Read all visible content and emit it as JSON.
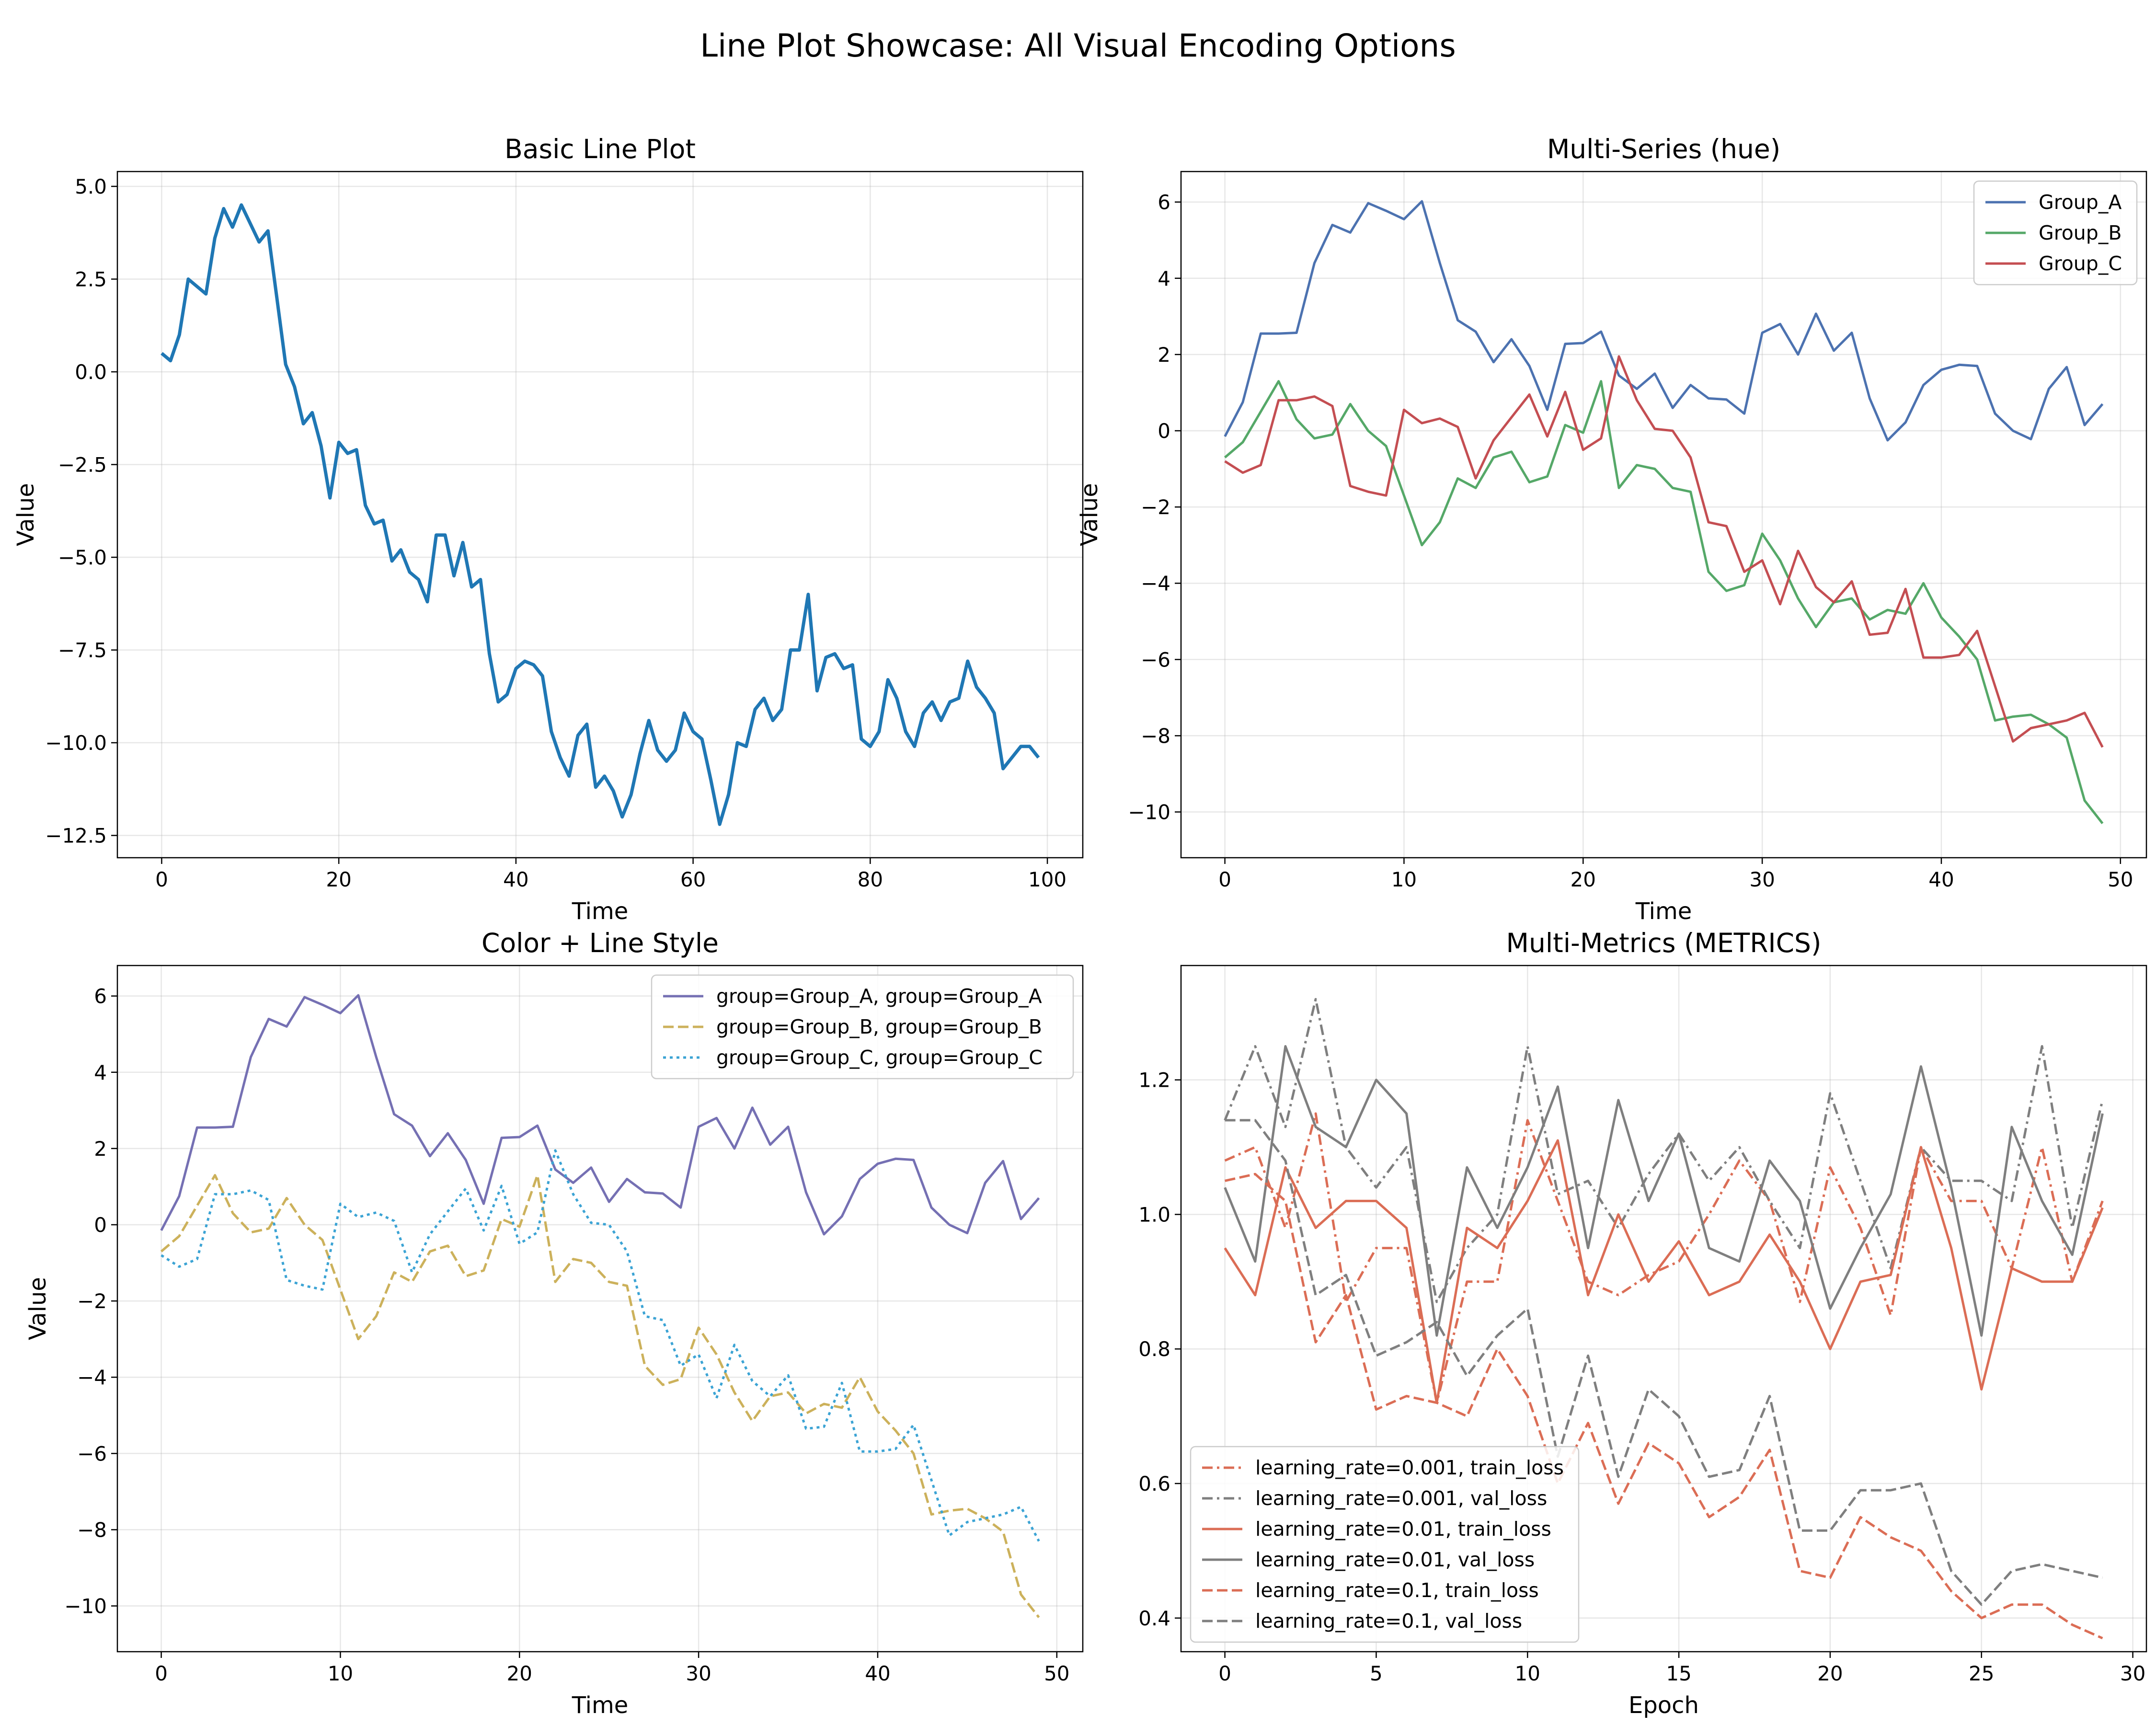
{
  "suptitle": "Line Plot Showcase: All Visual Encoding Options",
  "chart_data": [
    {
      "type": "line",
      "title": "Basic Line Plot",
      "xlabel": "Time",
      "ylabel": "Value",
      "xlim": [
        -5,
        104
      ],
      "ylim": [
        -13.1,
        5.4
      ],
      "xticks": [
        0,
        20,
        40,
        60,
        80,
        100
      ],
      "yticks": [
        5.0,
        2.5,
        0.0,
        -2.5,
        -5.0,
        -7.5,
        -10.0,
        -12.5
      ],
      "ytick_labels": [
        "5.0",
        "2.5",
        "0.0",
        "−2.5",
        "−5.0",
        "−7.5",
        "−10.0",
        "−12.5"
      ],
      "grid": true,
      "legend": null,
      "series": [
        {
          "color": "#1f77b4",
          "dash": "solid",
          "width": 7,
          "x_start": 0,
          "x_step": 1,
          "values": [
            0.5,
            0.3,
            1.0,
            2.5,
            2.3,
            2.1,
            3.6,
            4.4,
            3.9,
            4.5,
            4.0,
            3.5,
            3.8,
            2.0,
            0.2,
            -0.4,
            -1.4,
            -1.1,
            -2.0,
            -3.4,
            -1.9,
            -2.2,
            -2.1,
            -3.6,
            -4.1,
            -4.0,
            -5.1,
            -4.8,
            -5.4,
            -5.6,
            -6.2,
            -4.4,
            -4.4,
            -5.5,
            -4.6,
            -5.8,
            -5.6,
            -7.6,
            -8.9,
            -8.7,
            -8.0,
            -7.8,
            -7.9,
            -8.2,
            -9.7,
            -10.4,
            -10.9,
            -9.8,
            -9.5,
            -11.2,
            -10.9,
            -11.3,
            -12.0,
            -11.4,
            -10.3,
            -9.4,
            -10.2,
            -10.5,
            -10.2,
            -9.2,
            -9.7,
            -9.9,
            -11.0,
            -12.2,
            -11.4,
            -10.0,
            -10.1,
            -9.1,
            -8.8,
            -9.4,
            -9.1,
            -7.5,
            -7.5,
            -6.0,
            -8.6,
            -7.7,
            -7.6,
            -8.0,
            -7.9,
            -9.9,
            -10.1,
            -9.7,
            -8.3,
            -8.8,
            -9.7,
            -10.1,
            -9.2,
            -8.9,
            -9.4,
            -8.9,
            -8.8,
            -7.8,
            -8.5,
            -8.8,
            -9.2,
            -10.7,
            -10.4,
            -10.1,
            -10.1,
            -10.4
          ]
        }
      ]
    },
    {
      "type": "line",
      "title": "Multi-Series (hue)",
      "xlabel": "Time",
      "ylabel": "Value",
      "xlim": [
        -2.45,
        51.45
      ],
      "ylim": [
        -11.2,
        6.8
      ],
      "xticks": [
        0,
        10,
        20,
        30,
        40,
        50
      ],
      "yticks": [
        6,
        4,
        2,
        0,
        -2,
        -4,
        -6,
        -8,
        -10
      ],
      "ytick_labels": [
        "6",
        "4",
        "2",
        "0",
        "−2",
        "−4",
        "−6",
        "−8",
        "−10"
      ],
      "grid": true,
      "legend": "upper right",
      "series": [
        {
          "name": "Group_A",
          "color": "#4c72b0",
          "dash": "solid",
          "width": 5,
          "x_start": 0,
          "x_step": 1,
          "values": [
            -0.15,
            0.75,
            2.55,
            2.55,
            2.57,
            4.4,
            5.4,
            5.2,
            5.97,
            5.77,
            5.55,
            6.02,
            4.4,
            2.9,
            2.6,
            1.8,
            2.4,
            1.7,
            0.55,
            2.28,
            2.3,
            2.6,
            1.45,
            1.1,
            1.5,
            0.6,
            1.2,
            0.85,
            0.82,
            0.45,
            2.57,
            2.8,
            2.0,
            3.07,
            2.1,
            2.57,
            0.85,
            -0.25,
            0.22,
            1.2,
            1.6,
            1.73,
            1.7,
            0.45,
            0.0,
            -0.22,
            1.1,
            1.67,
            0.15,
            0.7
          ]
        },
        {
          "name": "Group_B",
          "color": "#55a868",
          "dash": "solid",
          "width": 5,
          "x_start": 0,
          "x_step": 1,
          "values": [
            -0.7,
            -0.3,
            0.5,
            1.3,
            0.3,
            -0.2,
            -0.1,
            0.7,
            0.0,
            -0.4,
            -1.7,
            -3.0,
            -2.4,
            -1.25,
            -1.5,
            -0.7,
            -0.55,
            -1.35,
            -1.2,
            0.15,
            -0.05,
            1.3,
            -1.5,
            -0.9,
            -1.0,
            -1.5,
            -1.6,
            -3.7,
            -4.2,
            -4.05,
            -2.7,
            -3.4,
            -4.4,
            -5.15,
            -4.5,
            -4.4,
            -4.95,
            -4.7,
            -4.8,
            -4.0,
            -4.9,
            -5.4,
            -6.0,
            -7.6,
            -7.5,
            -7.45,
            -7.7,
            -8.05,
            -9.7,
            -10.3
          ]
        },
        {
          "name": "Group_C",
          "color": "#c44e52",
          "dash": "solid",
          "width": 5,
          "x_start": 0,
          "x_step": 1,
          "values": [
            -0.8,
            -1.1,
            -0.9,
            0.8,
            0.8,
            0.9,
            0.65,
            -1.45,
            -1.6,
            -1.7,
            0.55,
            0.2,
            0.32,
            0.1,
            -1.25,
            -0.25,
            0.35,
            0.95,
            -0.15,
            1.02,
            -0.5,
            -0.2,
            1.95,
            0.8,
            0.05,
            0.0,
            -0.7,
            -2.4,
            -2.5,
            -3.7,
            -3.4,
            -4.55,
            -3.15,
            -4.1,
            -4.5,
            -3.95,
            -5.35,
            -5.3,
            -4.15,
            -5.95,
            -5.95,
            -5.88,
            -5.25,
            -6.7,
            -8.15,
            -7.8,
            -7.7,
            -7.6,
            -7.4,
            -8.3
          ]
        }
      ]
    },
    {
      "type": "line",
      "title": "Color + Line Style",
      "xlabel": "Time",
      "ylabel": "Value",
      "xlim": [
        -2.45,
        51.45
      ],
      "ylim": [
        -11.2,
        6.8
      ],
      "xticks": [
        0,
        10,
        20,
        30,
        40,
        50
      ],
      "yticks": [
        6,
        4,
        2,
        0,
        -2,
        -4,
        -6,
        -8,
        -10
      ],
      "ytick_labels": [
        "6",
        "4",
        "2",
        "0",
        "−2",
        "−4",
        "−6",
        "−8",
        "−10"
      ],
      "grid": true,
      "legend": "upper right",
      "series": [
        {
          "name": "group=Group_A, group=Group_A",
          "color": "#7570b3",
          "dash": "solid",
          "width": 5,
          "x_start": 0,
          "x_step": 1,
          "values": [
            -0.15,
            0.75,
            2.55,
            2.55,
            2.57,
            4.4,
            5.4,
            5.2,
            5.97,
            5.77,
            5.55,
            6.02,
            4.4,
            2.9,
            2.6,
            1.8,
            2.4,
            1.7,
            0.55,
            2.28,
            2.3,
            2.6,
            1.45,
            1.1,
            1.5,
            0.6,
            1.2,
            0.85,
            0.82,
            0.45,
            2.57,
            2.8,
            2.0,
            3.07,
            2.1,
            2.57,
            0.85,
            -0.25,
            0.22,
            1.2,
            1.6,
            1.73,
            1.7,
            0.45,
            0.0,
            -0.22,
            1.1,
            1.67,
            0.15,
            0.7
          ]
        },
        {
          "name": "group=Group_B, group=Group_B",
          "color": "#ccb15b",
          "dash": "dashed",
          "width": 5,
          "x_start": 0,
          "x_step": 1,
          "values": [
            -0.7,
            -0.3,
            0.5,
            1.3,
            0.3,
            -0.2,
            -0.1,
            0.7,
            0.0,
            -0.4,
            -1.7,
            -3.0,
            -2.4,
            -1.25,
            -1.5,
            -0.7,
            -0.55,
            -1.35,
            -1.2,
            0.15,
            -0.05,
            1.3,
            -1.5,
            -0.9,
            -1.0,
            -1.5,
            -1.6,
            -3.7,
            -4.2,
            -4.05,
            -2.7,
            -3.4,
            -4.4,
            -5.15,
            -4.5,
            -4.4,
            -4.95,
            -4.7,
            -4.8,
            -4.0,
            -4.9,
            -5.4,
            -6.0,
            -7.6,
            -7.5,
            -7.45,
            -7.7,
            -8.05,
            -9.7,
            -10.3
          ]
        },
        {
          "name": "group=Group_C, group=Group_C",
          "color": "#3ba3d4",
          "dash": "dotted",
          "width": 5,
          "x_start": 0,
          "x_step": 1,
          "values": [
            -0.8,
            -1.1,
            -0.9,
            0.8,
            0.8,
            0.9,
            0.65,
            -1.45,
            -1.6,
            -1.7,
            0.55,
            0.2,
            0.32,
            0.1,
            -1.25,
            -0.25,
            0.35,
            0.95,
            -0.15,
            1.02,
            -0.5,
            -0.2,
            1.95,
            0.8,
            0.05,
            0.0,
            -0.7,
            -2.4,
            -2.5,
            -3.7,
            -3.4,
            -4.55,
            -3.15,
            -4.1,
            -4.5,
            -3.95,
            -5.35,
            -5.3,
            -4.15,
            -5.95,
            -5.95,
            -5.88,
            -5.25,
            -6.7,
            -8.15,
            -7.8,
            -7.7,
            -7.6,
            -7.4,
            -8.3
          ]
        }
      ]
    },
    {
      "type": "line",
      "title": "Multi-Metrics (METRICS)",
      "xlabel": "Epoch",
      "ylabel": "",
      "xlim": [
        -1.45,
        30.45
      ],
      "ylim": [
        0.35,
        1.37
      ],
      "xticks": [
        0,
        5,
        10,
        15,
        20,
        25,
        30
      ],
      "yticks": [
        1.2,
        1.0,
        0.8,
        0.6,
        0.4
      ],
      "ytick_labels": [
        "1.2",
        "1.0",
        "0.8",
        "0.6",
        "0.4"
      ],
      "grid": true,
      "legend": "lower left",
      "series": [
        {
          "name": "learning_rate=0.001, train_loss",
          "color": "#db6d55",
          "dash": "dashdot",
          "width": 5,
          "x_start": 0,
          "x_step": 1,
          "values": [
            1.08,
            1.1,
            0.98,
            1.15,
            0.87,
            0.95,
            0.95,
            0.72,
            0.9,
            0.9,
            1.14,
            1.02,
            0.9,
            0.88,
            0.91,
            0.93,
            1.0,
            1.08,
            1.02,
            0.87,
            1.07,
            0.98,
            0.85,
            1.1,
            1.02,
            1.02,
            0.92,
            1.1,
            0.9,
            1.02
          ]
        },
        {
          "name": "learning_rate=0.001, val_loss",
          "color": "#7f7f7f",
          "dash": "dashdot",
          "width": 5,
          "x_start": 0,
          "x_step": 1,
          "values": [
            1.14,
            1.25,
            1.13,
            1.32,
            1.1,
            1.04,
            1.1,
            0.87,
            0.95,
            1.0,
            1.25,
            1.03,
            1.05,
            0.98,
            1.06,
            1.12,
            1.05,
            1.1,
            1.02,
            0.95,
            1.18,
            1.05,
            0.92,
            1.1,
            1.05,
            1.05,
            1.02,
            1.25,
            0.98,
            1.17
          ]
        },
        {
          "name": "learning_rate=0.01, train_loss",
          "color": "#db6d55",
          "dash": "solid",
          "width": 5,
          "x_start": 0,
          "x_step": 1,
          "values": [
            0.95,
            0.88,
            1.07,
            0.98,
            1.02,
            1.02,
            0.98,
            0.72,
            0.98,
            0.95,
            1.02,
            1.11,
            0.88,
            1.0,
            0.9,
            0.96,
            0.88,
            0.9,
            0.97,
            0.9,
            0.8,
            0.9,
            0.91,
            1.1,
            0.95,
            0.74,
            0.92,
            0.9,
            0.9,
            1.01
          ]
        },
        {
          "name": "learning_rate=0.01, val_loss",
          "color": "#7f7f7f",
          "dash": "solid",
          "width": 5,
          "x_start": 0,
          "x_step": 1,
          "values": [
            1.04,
            0.93,
            1.25,
            1.13,
            1.1,
            1.2,
            1.15,
            0.82,
            1.07,
            0.98,
            1.07,
            1.19,
            0.95,
            1.17,
            1.02,
            1.12,
            0.95,
            0.93,
            1.08,
            1.02,
            0.86,
            0.95,
            1.03,
            1.22,
            1.04,
            0.82,
            1.13,
            1.02,
            0.94,
            1.15
          ]
        },
        {
          "name": "learning_rate=0.1, train_loss",
          "color": "#db6d55",
          "dash": "dashed",
          "width": 5,
          "x_start": 0,
          "x_step": 1,
          "values": [
            1.05,
            1.06,
            1.02,
            0.81,
            0.88,
            0.71,
            0.73,
            0.72,
            0.7,
            0.8,
            0.73,
            0.6,
            0.69,
            0.57,
            0.66,
            0.63,
            0.55,
            0.58,
            0.65,
            0.47,
            0.46,
            0.55,
            0.52,
            0.5,
            0.44,
            0.4,
            0.42,
            0.42,
            0.39,
            0.37
          ]
        },
        {
          "name": "learning_rate=0.1, val_loss",
          "color": "#7f7f7f",
          "dash": "dashed",
          "width": 5,
          "x_start": 0,
          "x_step": 1,
          "values": [
            1.14,
            1.14,
            1.08,
            0.88,
            0.91,
            0.79,
            0.81,
            0.84,
            0.76,
            0.82,
            0.86,
            0.64,
            0.79,
            0.61,
            0.74,
            0.7,
            0.61,
            0.62,
            0.73,
            0.53,
            0.53,
            0.59,
            0.59,
            0.6,
            0.47,
            0.42,
            0.47,
            0.48,
            0.47,
            0.46
          ]
        }
      ]
    }
  ]
}
